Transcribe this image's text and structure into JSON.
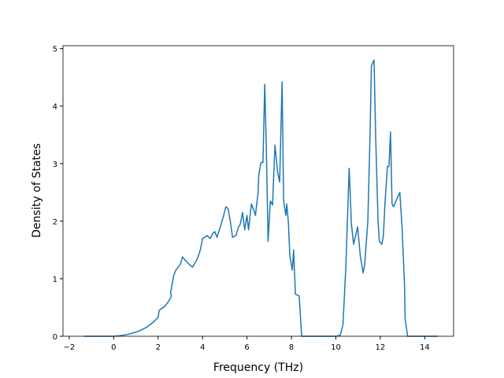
{
  "chart_data": {
    "type": "line",
    "xlabel": "Frequency (THz)",
    "ylabel": "Density of States",
    "xlim": [
      -2.28,
      15.3
    ],
    "ylim": [
      0,
      5.05
    ],
    "xticks": [
      {
        "value": -2,
        "label": "−2"
      },
      0,
      2,
      4,
      6,
      8,
      10,
      12,
      14
    ],
    "yticks": [
      0,
      1,
      2,
      3,
      4,
      5
    ],
    "series": [
      {
        "color": "#1f77b4",
        "x": [
          -1.35,
          -1,
          -0.5,
          0,
          0.3,
          0.6,
          0.9,
          1.2,
          1.5,
          1.8,
          2.0,
          2.05,
          2.3,
          2.5,
          2.6,
          2.56,
          2.7,
          2.8,
          2.9,
          3.0,
          3.1,
          3.2,
          3.4,
          3.55,
          3.7,
          3.8,
          3.9,
          4.0,
          4.1,
          4.2,
          4.35,
          4.45,
          4.55,
          4.65,
          4.8,
          4.95,
          5.05,
          5.15,
          5.25,
          5.35,
          5.5,
          5.62,
          5.7,
          5.8,
          5.9,
          6.0,
          6.07,
          6.2,
          6.3,
          6.38,
          6.5,
          6.53,
          6.63,
          6.72,
          6.8,
          6.87,
          6.95,
          7.05,
          7.15,
          7.26,
          7.38,
          7.47,
          7.58,
          7.65,
          7.75,
          7.79,
          7.86,
          7.93,
          8.04,
          8.1,
          8.18,
          8.35,
          8.46,
          9.0,
          9.5,
          10.0,
          10.2,
          10.32,
          10.45,
          10.6,
          10.7,
          10.8,
          10.98,
          11.1,
          11.23,
          11.3,
          11.44,
          11.54,
          11.6,
          11.72,
          11.79,
          11.9,
          11.96,
          12.07,
          12.14,
          12.21,
          12.32,
          12.39,
          12.46,
          12.53,
          12.6,
          12.7,
          12.88,
          12.98,
          13.09,
          13.12,
          13.23,
          14,
          14.6
        ],
        "values": [
          0,
          0,
          0,
          0,
          0.01,
          0.03,
          0.06,
          0.1,
          0.16,
          0.25,
          0.33,
          0.45,
          0.52,
          0.62,
          0.7,
          0.75,
          1.05,
          1.15,
          1.2,
          1.25,
          1.38,
          1.33,
          1.25,
          1.2,
          1.3,
          1.38,
          1.5,
          1.7,
          1.72,
          1.75,
          1.7,
          1.78,
          1.82,
          1.72,
          1.9,
          2.1,
          2.25,
          2.22,
          2.0,
          1.72,
          1.75,
          1.9,
          1.95,
          2.15,
          1.85,
          2.1,
          1.85,
          2.3,
          2.2,
          2.1,
          2.5,
          2.8,
          3.02,
          3.02,
          4.38,
          3.3,
          1.65,
          2.35,
          2.28,
          3.32,
          2.85,
          2.68,
          4.42,
          2.35,
          2.1,
          2.3,
          2.0,
          1.4,
          1.15,
          1.5,
          0.73,
          0.7,
          0,
          0,
          0,
          0,
          0.02,
          0.2,
          1.2,
          2.92,
          1.95,
          1.6,
          1.9,
          1.4,
          1.1,
          1.25,
          2.0,
          3.5,
          4.7,
          4.8,
          3.5,
          2.0,
          1.65,
          1.6,
          1.75,
          2.3,
          2.95,
          2.95,
          3.55,
          2.3,
          2.25,
          2.35,
          2.5,
          1.9,
          0.9,
          0.3,
          0,
          0,
          0
        ]
      }
    ]
  }
}
